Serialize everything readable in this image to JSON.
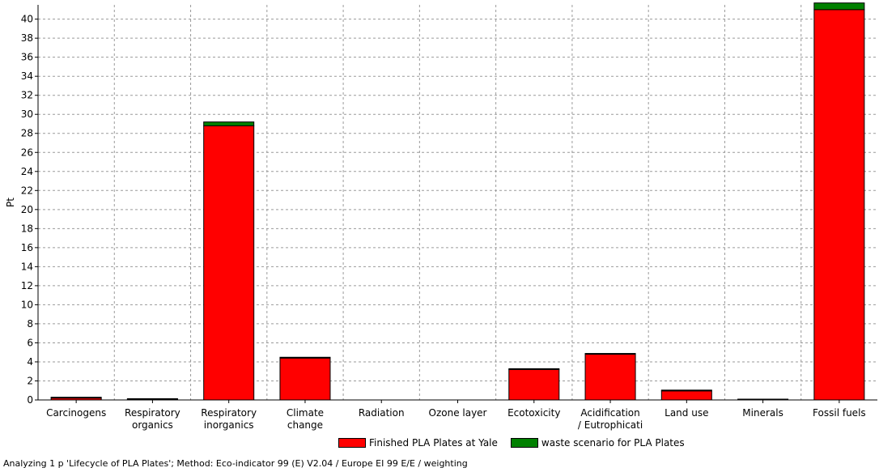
{
  "chart_data": {
    "type": "bar",
    "stacked": true,
    "ylabel": "Pt",
    "xlabel": "",
    "ylim": [
      0,
      41.5
    ],
    "y_ticks": [
      0,
      2,
      4,
      6,
      8,
      10,
      12,
      14,
      16,
      18,
      20,
      22,
      24,
      26,
      28,
      30,
      32,
      34,
      36,
      38,
      40
    ],
    "grid": true,
    "legend_position": "bottom",
    "categories": [
      [
        "Carcinogens"
      ],
      [
        "Respiratory",
        "organics"
      ],
      [
        "Respiratory",
        "inorganics"
      ],
      [
        "Climate",
        "change"
      ],
      [
        "Radiation"
      ],
      [
        "Ozone layer"
      ],
      [
        "Ecotoxicity"
      ],
      [
        "Acidification",
        "/ Eutrophicati"
      ],
      [
        "Land use"
      ],
      [
        "Minerals"
      ],
      [
        "Fossil fuels"
      ]
    ],
    "series": [
      {
        "name": "Finished PLA Plates at Yale",
        "color": "#ff0000",
        "values": [
          0.2,
          0.05,
          28.8,
          4.4,
          0.0,
          0.0,
          3.2,
          4.8,
          0.95,
          0.02,
          41.0
        ]
      },
      {
        "name": "waste scenario for PLA Plates",
        "color": "#008000",
        "values": [
          0.05,
          0.05,
          0.4,
          0.02,
          0.0,
          0.0,
          0.02,
          0.05,
          0.02,
          0.0,
          0.7
        ]
      }
    ]
  },
  "legend": {
    "items": [
      {
        "label": "Finished PLA Plates at Yale",
        "color": "#ff0000"
      },
      {
        "label": "waste scenario for PLA Plates",
        "color": "#008000"
      }
    ]
  },
  "footer": {
    "text": "Analyzing 1 p 'Lifecycle of PLA Plates';  Method: Eco-indicator 99 (E) V2.04 /  Europe EI 99 E/E / weighting"
  }
}
